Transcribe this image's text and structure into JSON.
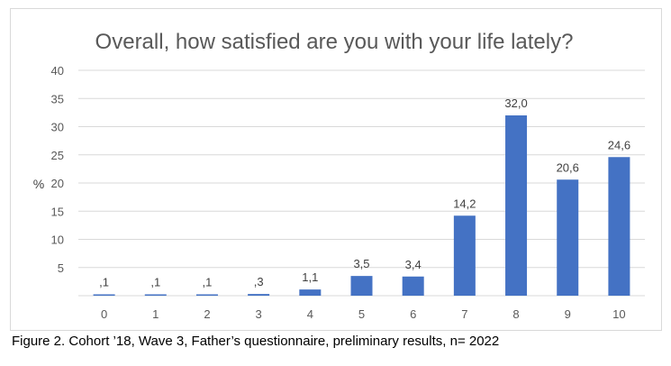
{
  "chart_data": {
    "type": "bar",
    "title": "Overall, how satisfied are you with your life lately?",
    "xlabel": "",
    "ylabel": "%",
    "categories": [
      "0",
      "1",
      "2",
      "3",
      "4",
      "5",
      "6",
      "7",
      "8",
      "9",
      "10"
    ],
    "values": [
      0.1,
      0.1,
      0.1,
      0.3,
      1.1,
      3.5,
      3.4,
      14.2,
      32.0,
      20.6,
      24.6
    ],
    "data_labels": [
      ",1",
      ",1",
      ",1",
      ",3",
      "1,1",
      "3,5",
      "3,4",
      "14,2",
      "32,0",
      "20,6",
      "24,6"
    ],
    "ylim": [
      0,
      40
    ],
    "yticks": [
      5,
      10,
      15,
      20,
      25,
      30,
      35,
      40
    ],
    "grid": true,
    "bar_color": "#4472c4",
    "grid_color": "#d9d9d9"
  },
  "caption": "Figure 2. Cohort ’18, Wave 3, Father’s questionnaire, preliminary results, n= 2022"
}
